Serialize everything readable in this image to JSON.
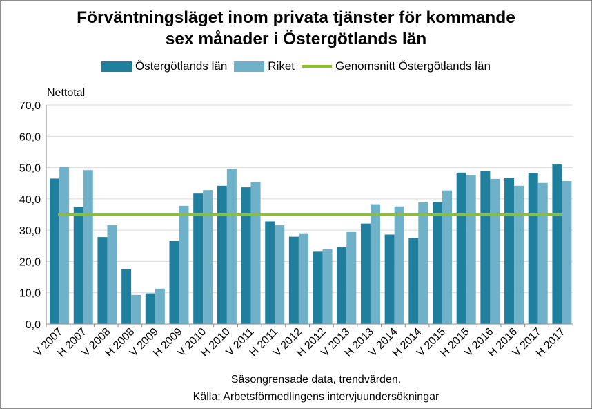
{
  "chart_data": {
    "type": "bar",
    "title_line1": "Förväntningsläget inom privata tjänster för kommande",
    "title_line2": "sex månader i Östergötlands län",
    "ylabel": "Nettotal",
    "xlabel": "",
    "ylim": [
      0,
      70
    ],
    "yticks": [
      "0,0",
      "10,0",
      "20,0",
      "30,0",
      "40,0",
      "50,0",
      "60,0",
      "70,0"
    ],
    "grid": true,
    "legend_position": "top",
    "categories": [
      "V 2007",
      "H 2007",
      "V 2008",
      "H 2008",
      "V 2009",
      "H 2009",
      "V 2010",
      "H 2010",
      "V 2011",
      "H 2011",
      "V 2012",
      "H 2012",
      "V 2013",
      "H 2013",
      "V 2014",
      "H 2014",
      "V 2015",
      "H 2015",
      "V 2016",
      "H 2016",
      "V 2017",
      "H 2017"
    ],
    "series": [
      {
        "name": "Östergötlands län",
        "color": "#1f7f9c",
        "values": [
          46.5,
          37.5,
          27.8,
          17.5,
          9.8,
          26.5,
          41.7,
          44.2,
          43.7,
          32.8,
          27.9,
          23.1,
          24.6,
          32.1,
          28.6,
          27.5,
          39.0,
          48.4,
          48.8,
          46.8,
          48.3,
          51.0
        ]
      },
      {
        "name": "Riket",
        "color": "#6fb1c9",
        "values": [
          50.2,
          49.2,
          31.6,
          9.3,
          11.3,
          37.8,
          42.8,
          49.6,
          45.3,
          31.6,
          29.0,
          23.9,
          29.4,
          38.3,
          37.6,
          38.9,
          42.7,
          47.6,
          46.4,
          44.2,
          45.1,
          45.7
        ]
      }
    ],
    "reference_line": {
      "name": "Genomsnitt Östergötlands län",
      "color": "#8cc322",
      "value": 35.0
    }
  },
  "footnotes": [
    "Säsongrensade data, trendvärden.",
    "Källa: Arbetsförmedlingens  intervjuundersökningar"
  ]
}
